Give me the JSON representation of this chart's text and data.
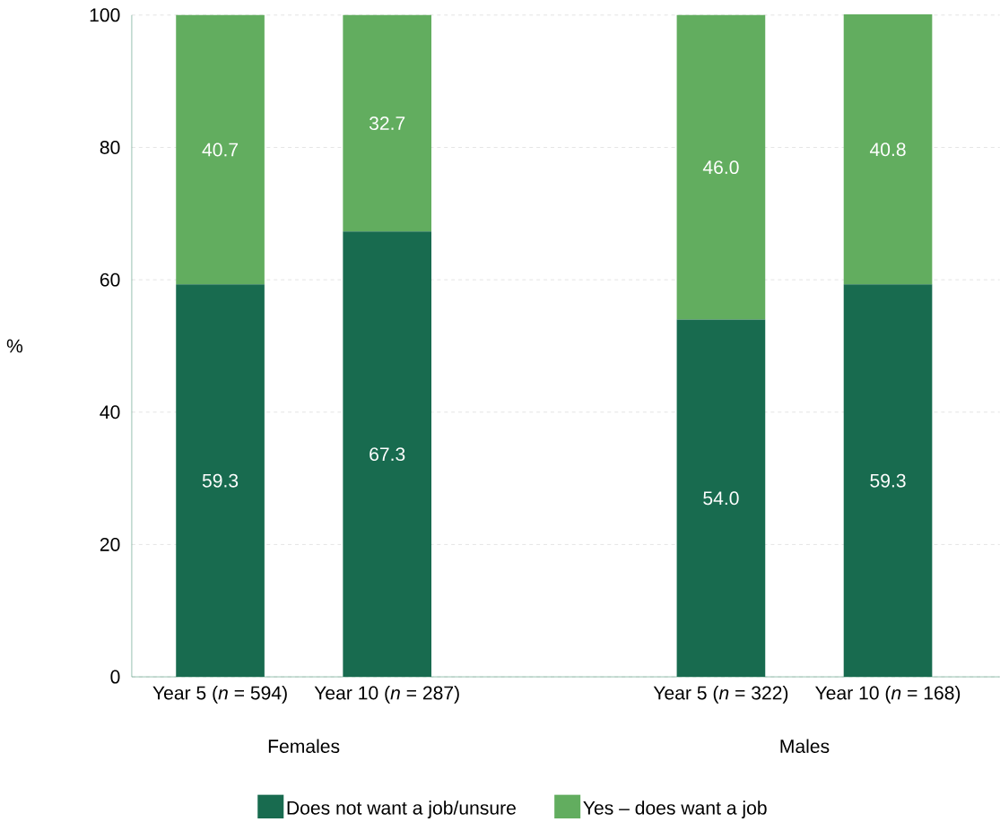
{
  "chart_data": {
    "type": "bar",
    "stacked": true,
    "categories": [
      "Year 5 (*n* = 594)",
      "Year 10 (*n* = 287)",
      null,
      "Year 5 (*n* = 322)",
      "Year 10 (*n* = 168)"
    ],
    "annotations": [
      "Females",
      "Males"
    ],
    "ylabel": "%",
    "series": [
      {
        "name": "Does not want a job/unsure",
        "color": "#186b4f",
        "values": [
          59.3,
          67.3,
          null,
          54.0,
          59.3
        ],
        "value_labels": [
          "59.3",
          "67.3",
          null,
          "54.0",
          "59.3"
        ]
      },
      {
        "name": "Yes – does want a job",
        "color": "#62ad5f",
        "values": [
          40.7,
          32.7,
          null,
          46.0,
          40.8
        ],
        "value_labels": [
          "40.7",
          "32.7",
          null,
          "46.0",
          "40.8"
        ]
      }
    ],
    "ylim": [
      0,
      100
    ],
    "yticks": [
      0,
      20,
      40,
      60,
      80,
      100
    ],
    "grid": "y",
    "legend": "bottom"
  }
}
